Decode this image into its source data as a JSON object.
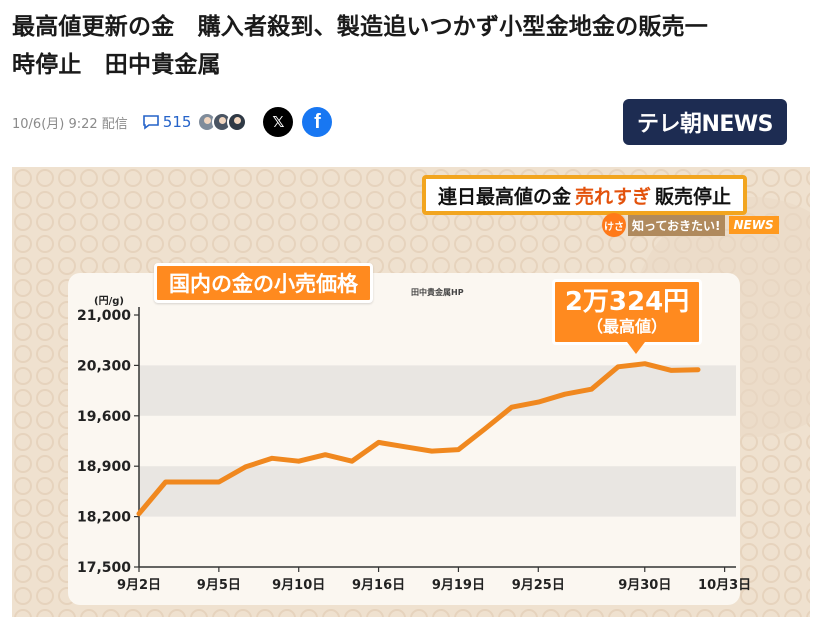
{
  "article": {
    "headline_line1": "最高値更新の金　購入者殺到、製造追いつかず小型金地金の販売一",
    "headline_line2": "時停止　田中貴金属",
    "date": "10/6(月) 9:22 配信",
    "comment_count": "515",
    "social": {
      "x": "𝕏",
      "facebook": "f"
    }
  },
  "brand": {
    "name": "テレ朝NEWS"
  },
  "figure": {
    "banner": {
      "pre": "連日最高値の金",
      "highlight": "売れすぎ",
      "post": "販売停止"
    },
    "sub_banner": {
      "kesa": "けさ",
      "text": "知っておきたい!",
      "news": "NEWS"
    },
    "chart_title": "国内の金の小売価格",
    "source": "田中貴金属HP",
    "callout": {
      "line1": "2万324円",
      "line2": "（最高値）"
    }
  },
  "colors": {
    "line": "#f0881f",
    "accent": "#ff8a1f",
    "brand": "#1d2c52",
    "link": "#2563c9"
  },
  "chart_data": {
    "type": "line",
    "ylabel": "(円/g)",
    "ylim": [
      17500,
      21000
    ],
    "yticks": [
      "17,500",
      "18,200",
      "18,900",
      "19,600",
      "20,300",
      "21,000"
    ],
    "ytick_values": [
      17500,
      18200,
      18900,
      19600,
      20300,
      21000
    ],
    "xticks": [
      "9月2日",
      "9月5日",
      "9月10日",
      "9月16日",
      "9月19日",
      "9月25日",
      "9月30日",
      "10月3日"
    ],
    "xtick_index": [
      0,
      3,
      6,
      9,
      12,
      15,
      19,
      22
    ],
    "series": [
      {
        "values": [
          18240,
          18680,
          18680,
          18680,
          18890,
          19010,
          18970,
          19060,
          18970,
          19230,
          19170,
          19110,
          19130,
          19420,
          19720,
          19790,
          19900,
          19970,
          20280,
          20324,
          20230,
          20240
        ]
      }
    ]
  }
}
